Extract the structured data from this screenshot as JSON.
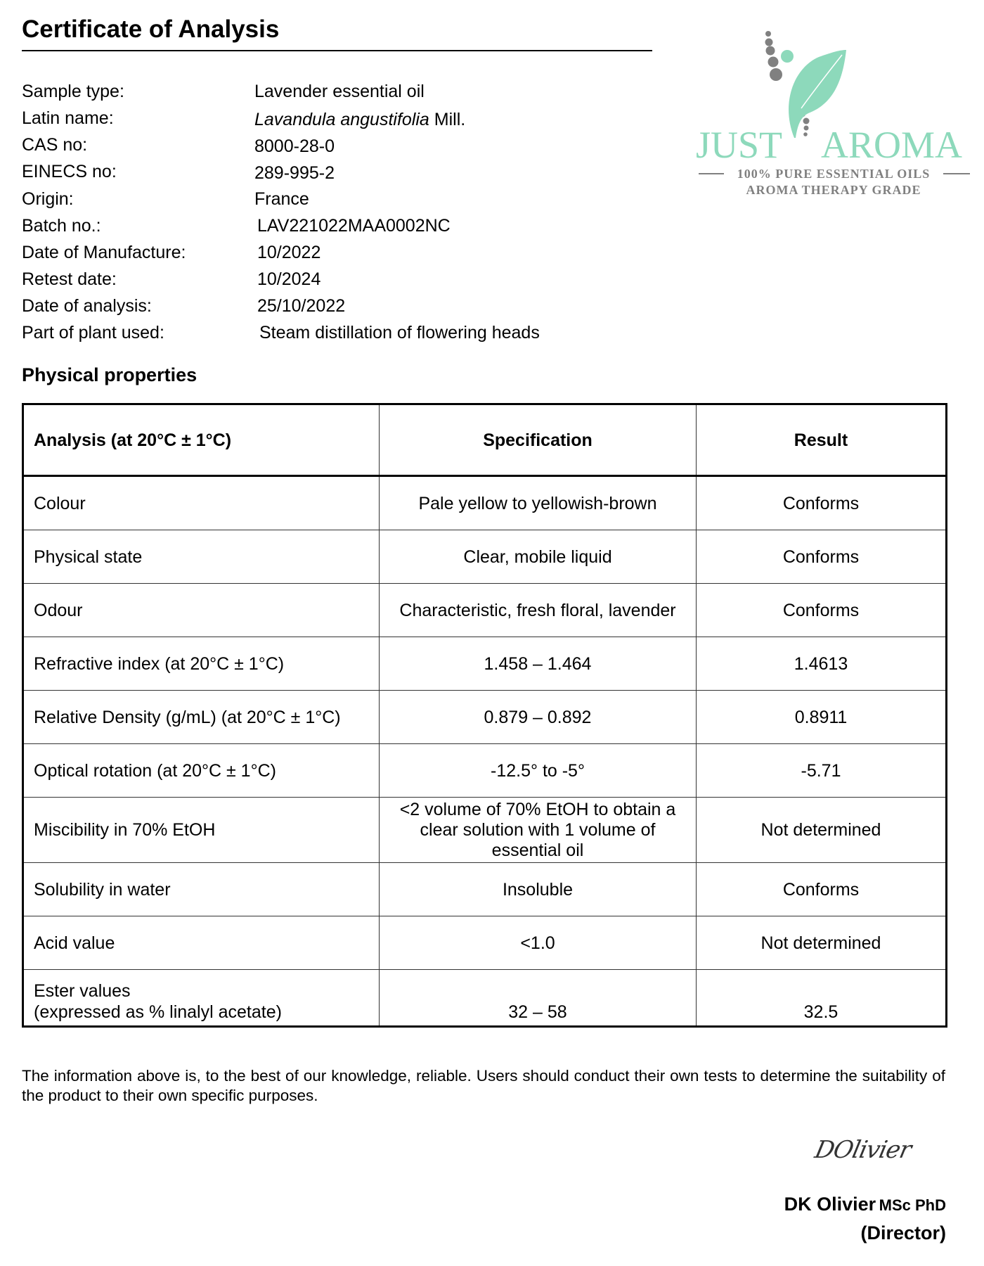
{
  "title": "Certificate of Analysis",
  "info": [
    {
      "label": "Sample type:",
      "value": "Lavender essential oil"
    },
    {
      "label": "Latin name:",
      "value_italic": "Lavandula angustifolia",
      "value_suffix": " Mill."
    },
    {
      "label": "CAS no:",
      "value": "8000-28-0"
    },
    {
      "label": "EINECS no:",
      "value": "289-995-2"
    },
    {
      "label": "Origin:",
      "value": "France"
    },
    {
      "label": "Batch no.:",
      "value": "LAV221022MAA0002NC"
    },
    {
      "label": "Date of Manufacture:",
      "value": "10/2022"
    },
    {
      "label": "Retest date:",
      "value": "10/2024"
    },
    {
      "label": "Date of analysis:",
      "value": "25/10/2022"
    },
    {
      "label": "Part of plant used:",
      "value": "Steam distillation of flowering heads"
    }
  ],
  "section_title": "Physical properties",
  "table": {
    "headers": [
      "Analysis (at 20°C ± 1°C)",
      "Specification",
      "Result"
    ],
    "rows": [
      [
        "Colour",
        "Pale yellow to yellowish-brown",
        "Conforms"
      ],
      [
        "Physical state",
        "Clear, mobile liquid",
        "Conforms"
      ],
      [
        "Odour",
        "Characteristic, fresh floral, lavender",
        "Conforms"
      ],
      [
        "Refractive index (at 20°C ± 1°C)",
        "1.458 – 1.464",
        "1.4613"
      ],
      [
        "Relative Density (g/mL) (at 20°C ± 1°C)",
        "0.879 – 0.892",
        "0.8911"
      ],
      [
        "Optical rotation (at 20°C ± 1°C)",
        "-12.5° to -5°",
        "-5.71"
      ],
      [
        "Miscibility in 70% EtOH",
        "<2 volume of 70% EtOH to obtain a clear solution with 1 volume of essential oil",
        "Not determined"
      ],
      [
        "Solubility in water",
        "Insoluble",
        "Conforms"
      ],
      [
        "Acid value",
        "<1.0",
        "Not determined"
      ],
      [
        "Ester values",
        "32 – 58",
        "32.5"
      ]
    ],
    "ester_subline": "(expressed as % linalyl acetate)"
  },
  "disclaimer": "The information above is, to the best of our knowledge, reliable. Users should conduct their own tests to determine the suitability of the product to their own specific purposes.",
  "signature": {
    "handwritten": "DOlivier",
    "name": "DK Olivier",
    "qualifications": "MSc PhD",
    "role": "(Director)"
  },
  "logo": {
    "brand_left": "JUST",
    "brand_right": "AROMA",
    "tagline1": "100% PURE ESSENTIAL OILS",
    "tagline2": "AROMA THERAPY GRADE",
    "colors": {
      "green": "#8dd9bb",
      "gray": "#808080"
    }
  }
}
